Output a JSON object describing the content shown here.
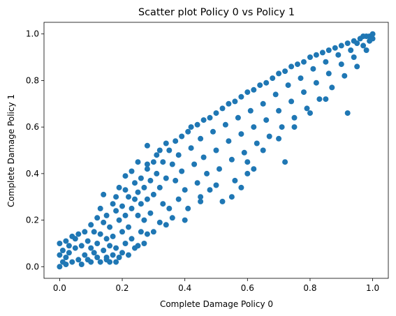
{
  "chart_data": {
    "type": "scatter",
    "title": "Scatter plot Policy 0 vs Policy 1",
    "xlabel": "Complete Damage Policy 0",
    "ylabel": "Complete Damage Policy 1",
    "xlim": [
      -0.05,
      1.05
    ],
    "ylim": [
      -0.05,
      1.05
    ],
    "xticks": [
      0.0,
      0.2,
      0.4,
      0.6,
      0.8,
      1.0
    ],
    "yticks": [
      0.0,
      0.2,
      0.4,
      0.6,
      0.8,
      1.0
    ],
    "xtick_labels": [
      "0.0",
      "0.2",
      "0.4",
      "0.6",
      "0.8",
      "1.0"
    ],
    "ytick_labels": [
      "0.0",
      "0.2",
      "0.4",
      "0.6",
      "0.8",
      "1.0"
    ],
    "grid": false,
    "legend": "none",
    "marker_color": "#1f77b4",
    "points": [
      [
        0.0,
        0.0
      ],
      [
        0.01,
        0.02
      ],
      [
        0.02,
        0.01
      ],
      [
        0.0,
        0.05
      ],
      [
        0.0,
        0.1
      ],
      [
        0.01,
        0.07
      ],
      [
        0.02,
        0.04
      ],
      [
        0.03,
        0.06
      ],
      [
        0.04,
        0.02
      ],
      [
        0.05,
        0.08
      ],
      [
        0.03,
        0.09
      ],
      [
        0.06,
        0.03
      ],
      [
        0.07,
        0.01
      ],
      [
        0.08,
        0.05
      ],
      [
        0.05,
        0.12
      ],
      [
        0.02,
        0.11
      ],
      [
        0.04,
        0.13
      ],
      [
        0.07,
        0.09
      ],
      [
        0.09,
        0.03
      ],
      [
        0.1,
        0.02
      ],
      [
        0.11,
        0.06
      ],
      [
        0.06,
        0.14
      ],
      [
        0.08,
        0.15
      ],
      [
        0.09,
        0.11
      ],
      [
        0.1,
        0.08
      ],
      [
        0.12,
        0.04
      ],
      [
        0.13,
        0.02
      ],
      [
        0.12,
        0.1
      ],
      [
        0.11,
        0.15
      ],
      [
        0.1,
        0.18
      ],
      [
        0.13,
        0.14
      ],
      [
        0.14,
        0.07
      ],
      [
        0.15,
        0.04
      ],
      [
        0.16,
        0.02
      ],
      [
        0.14,
        0.19
      ],
      [
        0.15,
        0.12
      ],
      [
        0.16,
        0.09
      ],
      [
        0.17,
        0.05
      ],
      [
        0.12,
        0.21
      ],
      [
        0.13,
        0.25
      ],
      [
        0.15,
        0.22
      ],
      [
        0.16,
        0.17
      ],
      [
        0.17,
        0.13
      ],
      [
        0.18,
        0.08
      ],
      [
        0.19,
        0.04
      ],
      [
        0.2,
        0.06
      ],
      [
        0.18,
        0.24
      ],
      [
        0.19,
        0.2
      ],
      [
        0.2,
        0.15
      ],
      [
        0.21,
        0.1
      ],
      [
        0.14,
        0.31
      ],
      [
        0.17,
        0.27
      ],
      [
        0.18,
        0.3
      ],
      [
        0.2,
        0.26
      ],
      [
        0.21,
        0.22
      ],
      [
        0.22,
        0.17
      ],
      [
        0.23,
        0.12
      ],
      [
        0.24,
        0.08
      ],
      [
        0.22,
        0.3
      ],
      [
        0.23,
        0.25
      ],
      [
        0.19,
        0.34
      ],
      [
        0.21,
        0.33
      ],
      [
        0.24,
        0.29
      ],
      [
        0.25,
        0.22
      ],
      [
        0.26,
        0.15
      ],
      [
        0.27,
        0.1
      ],
      [
        0.24,
        0.36
      ],
      [
        0.25,
        0.32
      ],
      [
        0.26,
        0.27
      ],
      [
        0.27,
        0.2
      ],
      [
        0.21,
        0.39
      ],
      [
        0.23,
        0.41
      ],
      [
        0.26,
        0.38
      ],
      [
        0.27,
        0.34
      ],
      [
        0.28,
        0.29
      ],
      [
        0.29,
        0.23
      ],
      [
        0.3,
        0.15
      ],
      [
        0.28,
        0.42
      ],
      [
        0.29,
        0.37
      ],
      [
        0.3,
        0.31
      ],
      [
        0.25,
        0.45
      ],
      [
        0.28,
        0.44
      ],
      [
        0.3,
        0.45
      ],
      [
        0.31,
        0.4
      ],
      [
        0.32,
        0.34
      ],
      [
        0.33,
        0.27
      ],
      [
        0.34,
        0.18
      ],
      [
        0.31,
        0.48
      ],
      [
        0.33,
        0.45
      ],
      [
        0.34,
        0.38
      ],
      [
        0.28,
        0.52
      ],
      [
        0.32,
        0.5
      ],
      [
        0.35,
        0.5
      ],
      [
        0.36,
        0.44
      ],
      [
        0.37,
        0.37
      ],
      [
        0.38,
        0.29
      ],
      [
        0.36,
        0.21
      ],
      [
        0.34,
        0.53
      ],
      [
        0.37,
        0.54
      ],
      [
        0.38,
        0.48
      ],
      [
        0.39,
        0.41
      ],
      [
        0.4,
        0.33
      ],
      [
        0.41,
        0.25
      ],
      [
        0.39,
        0.56
      ],
      [
        0.41,
        0.58
      ],
      [
        0.42,
        0.51
      ],
      [
        0.43,
        0.44
      ],
      [
        0.44,
        0.36
      ],
      [
        0.45,
        0.28
      ],
      [
        0.42,
        0.6
      ],
      [
        0.44,
        0.61
      ],
      [
        0.45,
        0.55
      ],
      [
        0.46,
        0.47
      ],
      [
        0.47,
        0.4
      ],
      [
        0.48,
        0.33
      ],
      [
        0.46,
        0.63
      ],
      [
        0.48,
        0.64
      ],
      [
        0.49,
        0.58
      ],
      [
        0.5,
        0.5
      ],
      [
        0.51,
        0.42
      ],
      [
        0.5,
        0.66
      ],
      [
        0.52,
        0.68
      ],
      [
        0.53,
        0.61
      ],
      [
        0.54,
        0.54
      ],
      [
        0.55,
        0.46
      ],
      [
        0.56,
        0.37
      ],
      [
        0.54,
        0.7
      ],
      [
        0.56,
        0.71
      ],
      [
        0.57,
        0.64
      ],
      [
        0.58,
        0.57
      ],
      [
        0.59,
        0.49
      ],
      [
        0.6,
        0.4
      ],
      [
        0.58,
        0.73
      ],
      [
        0.6,
        0.75
      ],
      [
        0.61,
        0.67
      ],
      [
        0.62,
        0.6
      ],
      [
        0.63,
        0.53
      ],
      [
        0.62,
        0.76
      ],
      [
        0.64,
        0.78
      ],
      [
        0.65,
        0.7
      ],
      [
        0.66,
        0.63
      ],
      [
        0.67,
        0.56
      ],
      [
        0.66,
        0.79
      ],
      [
        0.68,
        0.81
      ],
      [
        0.69,
        0.74
      ],
      [
        0.7,
        0.67
      ],
      [
        0.71,
        0.6
      ],
      [
        0.72,
        0.45
      ],
      [
        0.7,
        0.83
      ],
      [
        0.72,
        0.84
      ],
      [
        0.73,
        0.78
      ],
      [
        0.74,
        0.71
      ],
      [
        0.75,
        0.64
      ],
      [
        0.74,
        0.86
      ],
      [
        0.76,
        0.87
      ],
      [
        0.77,
        0.81
      ],
      [
        0.78,
        0.75
      ],
      [
        0.79,
        0.68
      ],
      [
        0.78,
        0.88
      ],
      [
        0.8,
        0.9
      ],
      [
        0.81,
        0.85
      ],
      [
        0.82,
        0.79
      ],
      [
        0.83,
        0.72
      ],
      [
        0.82,
        0.91
      ],
      [
        0.84,
        0.92
      ],
      [
        0.85,
        0.88
      ],
      [
        0.86,
        0.83
      ],
      [
        0.87,
        0.77
      ],
      [
        0.86,
        0.93
      ],
      [
        0.88,
        0.94
      ],
      [
        0.89,
        0.91
      ],
      [
        0.9,
        0.87
      ],
      [
        0.91,
        0.82
      ],
      [
        0.92,
        0.66
      ],
      [
        0.9,
        0.95
      ],
      [
        0.92,
        0.96
      ],
      [
        0.93,
        0.93
      ],
      [
        0.94,
        0.9
      ],
      [
        0.95,
        0.86
      ],
      [
        0.94,
        0.97
      ],
      [
        0.96,
        0.98
      ],
      [
        0.97,
        0.95
      ],
      [
        0.98,
        0.93
      ],
      [
        0.99,
        0.99
      ],
      [
        1.0,
        1.0
      ],
      [
        0.98,
        0.99
      ],
      [
        0.99,
        0.97
      ],
      [
        1.0,
        0.98
      ],
      [
        0.97,
        0.99
      ],
      [
        0.95,
        0.96
      ],
      [
        0.15,
        0.03
      ],
      [
        0.18,
        0.02
      ],
      [
        0.22,
        0.05
      ],
      [
        0.25,
        0.09
      ],
      [
        0.28,
        0.14
      ],
      [
        0.32,
        0.19
      ],
      [
        0.35,
        0.25
      ],
      [
        0.4,
        0.2
      ],
      [
        0.45,
        0.3
      ],
      [
        0.5,
        0.35
      ],
      [
        0.55,
        0.3
      ],
      [
        0.6,
        0.45
      ],
      [
        0.65,
        0.5
      ],
      [
        0.7,
        0.55
      ],
      [
        0.75,
        0.6
      ],
      [
        0.8,
        0.66
      ],
      [
        0.85,
        0.72
      ],
      [
        0.62,
        0.42
      ],
      [
        0.58,
        0.34
      ],
      [
        0.52,
        0.28
      ]
    ]
  }
}
